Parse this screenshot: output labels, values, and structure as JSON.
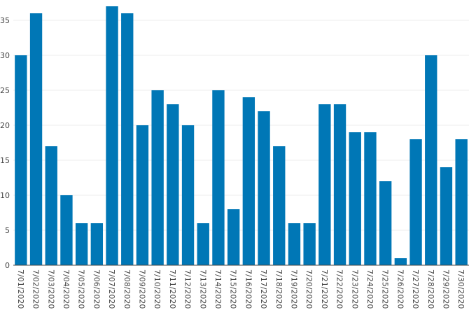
{
  "chart_data": {
    "type": "bar",
    "categories": [
      "7/01/2020",
      "7/02/2020",
      "7/03/2020",
      "7/04/2020",
      "7/05/2020",
      "7/06/2020",
      "7/07/2020",
      "7/08/2020",
      "7/09/2020",
      "7/10/2020",
      "7/11/2020",
      "7/12/2020",
      "7/13/2020",
      "7/14/2020",
      "7/15/2020",
      "7/16/2020",
      "7/17/2020",
      "7/18/2020",
      "7/19/2020",
      "7/20/2020",
      "7/21/2020",
      "7/22/2020",
      "7/23/2020",
      "7/24/2020",
      "7/25/2020",
      "7/26/2020",
      "7/27/2020",
      "7/28/2020",
      "7/29/2020",
      "7/30/2020"
    ],
    "values": [
      30,
      36,
      17,
      10,
      6,
      6,
      37,
      36,
      20,
      25,
      23,
      20,
      6,
      25,
      8,
      24,
      22,
      17,
      6,
      6,
      23,
      23,
      19,
      19,
      12,
      1,
      18,
      30,
      14,
      18
    ],
    "yticks": [
      "0",
      "5",
      "10",
      "15",
      "20",
      "25",
      "30",
      "35"
    ],
    "ylim": [
      0,
      37
    ],
    "grid": true,
    "bar_color": "#0077b6",
    "title": "",
    "xlabel": "",
    "ylabel": ""
  }
}
